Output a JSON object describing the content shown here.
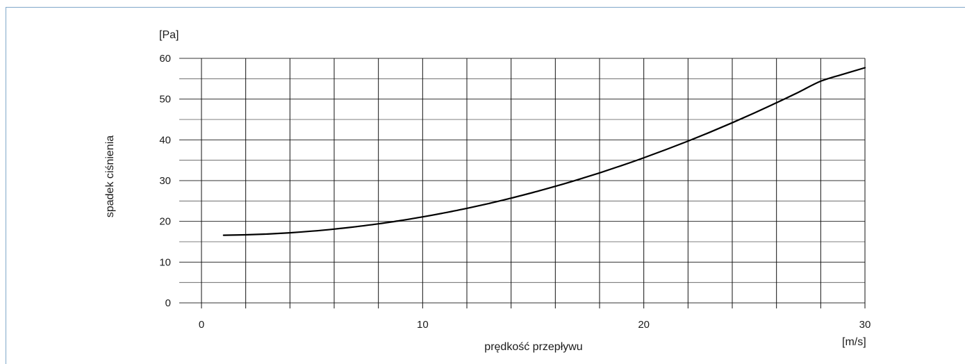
{
  "chart_data": {
    "type": "line",
    "title": "",
    "xlabel": "prędkość przepływu",
    "ylabel": "spadek ciśnienia",
    "x_unit": "[m/s]",
    "y_unit": "[Pa]",
    "xlim": [
      0,
      30
    ],
    "ylim": [
      0,
      60
    ],
    "x_ticks": [
      0,
      10,
      20,
      30
    ],
    "y_ticks": [
      0,
      10,
      20,
      30,
      40,
      50,
      60
    ],
    "x_gridlines": [
      0,
      2,
      4,
      6,
      8,
      10,
      12,
      14,
      16,
      18,
      20,
      22,
      24,
      26,
      28,
      30
    ],
    "y_gridlines": [
      0,
      5,
      10,
      15,
      20,
      25,
      30,
      35,
      40,
      45,
      50,
      55,
      60
    ],
    "grid": true,
    "series": [
      {
        "x": [
          1,
          2,
          3,
          4,
          5,
          6,
          7,
          8,
          9,
          10,
          11,
          12,
          13,
          14,
          15,
          16,
          17,
          18,
          19,
          20,
          21,
          22,
          23,
          24,
          25,
          26,
          27,
          28,
          29,
          30
        ],
        "values": [
          16.6,
          16.7,
          16.9,
          17.2,
          17.6,
          18.1,
          18.7,
          19.4,
          20.2,
          21.1,
          22.1,
          23.2,
          24.4,
          25.7,
          27.1,
          28.6,
          30.2,
          31.9,
          33.7,
          35.6,
          37.6,
          39.7,
          41.9,
          44.2,
          46.6,
          49.1,
          51.7,
          54.4,
          56.1,
          57.7
        ]
      }
    ],
    "line_color": "#000000"
  }
}
